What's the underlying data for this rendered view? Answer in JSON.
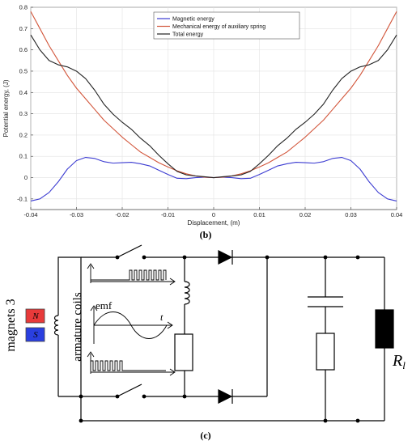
{
  "chart_data": {
    "type": "line",
    "title": "",
    "xlabel": "Displacement, (m)",
    "ylabel": "Potential energy, (J)",
    "xlim": [
      -0.04,
      0.04
    ],
    "ylim": [
      -0.15,
      0.8
    ],
    "xticks": [
      -0.04,
      -0.03,
      -0.02,
      -0.01,
      0,
      0.01,
      0.02,
      0.03,
      0.04
    ],
    "xtick_labels": [
      "-0.04",
      "-0.03",
      "-0.02",
      "-0.01",
      "0",
      "0.01",
      "0.02",
      "0.03",
      "0.04"
    ],
    "yticks": [
      -0.1,
      0,
      0.1,
      0.2,
      0.3,
      0.4,
      0.5,
      0.6,
      0.7,
      0.8
    ],
    "ytick_labels": [
      "-0.1",
      "0",
      "0.1",
      "0.2",
      "0.3",
      "0.4",
      "0.5",
      "0.6",
      "0.7",
      "0.8"
    ],
    "grid": true,
    "legend_position": "top-center",
    "x": [
      -0.04,
      -0.038,
      -0.036,
      -0.034,
      -0.032,
      -0.03,
      -0.028,
      -0.026,
      -0.024,
      -0.022,
      -0.02,
      -0.018,
      -0.016,
      -0.014,
      -0.012,
      -0.01,
      -0.008,
      -0.006,
      -0.004,
      -0.002,
      0,
      0.002,
      0.004,
      0.006,
      0.008,
      0.01,
      0.012,
      0.014,
      0.016,
      0.018,
      0.02,
      0.022,
      0.024,
      0.026,
      0.028,
      0.03,
      0.032,
      0.034,
      0.036,
      0.038,
      0.04
    ],
    "series": [
      {
        "name": "Magnetic energy",
        "color": "#3b3bd1",
        "values": [
          -0.11,
          -0.1,
          -0.07,
          -0.02,
          0.04,
          0.08,
          0.095,
          0.09,
          0.075,
          0.068,
          0.07,
          0.072,
          0.065,
          0.055,
          0.035,
          0.015,
          -0.003,
          -0.005,
          0.0,
          0.002,
          0.0,
          0.002,
          0.0,
          -0.005,
          -0.003,
          0.015,
          0.035,
          0.055,
          0.065,
          0.072,
          0.07,
          0.068,
          0.075,
          0.09,
          0.095,
          0.08,
          0.04,
          -0.02,
          -0.07,
          -0.1,
          -0.11
        ]
      },
      {
        "name": "Mechanical energy of auxiliary spring",
        "color": "#d2553a",
        "values": [
          0.78,
          0.7,
          0.62,
          0.55,
          0.48,
          0.42,
          0.37,
          0.32,
          0.27,
          0.23,
          0.19,
          0.155,
          0.12,
          0.095,
          0.07,
          0.05,
          0.032,
          0.018,
          0.008,
          0.002,
          0.0,
          0.002,
          0.008,
          0.018,
          0.032,
          0.05,
          0.07,
          0.095,
          0.12,
          0.155,
          0.19,
          0.23,
          0.27,
          0.32,
          0.37,
          0.42,
          0.48,
          0.55,
          0.62,
          0.7,
          0.78
        ]
      },
      {
        "name": "Total energy",
        "color": "#222222",
        "values": [
          0.67,
          0.6,
          0.55,
          0.53,
          0.52,
          0.5,
          0.465,
          0.41,
          0.345,
          0.298,
          0.26,
          0.227,
          0.185,
          0.15,
          0.105,
          0.065,
          0.029,
          0.013,
          0.008,
          0.004,
          0.0,
          0.004,
          0.008,
          0.013,
          0.029,
          0.065,
          0.105,
          0.15,
          0.185,
          0.227,
          0.26,
          0.298,
          0.345,
          0.41,
          0.465,
          0.5,
          0.52,
          0.53,
          0.55,
          0.6,
          0.67
        ]
      }
    ]
  },
  "captions": {
    "b": "(b)",
    "c": "(c)"
  },
  "circuit": {
    "magnets_label": "magnets 3",
    "coils_label": "armature coils",
    "emf_label": "emf",
    "time_label": "t",
    "magnet_n": "N",
    "magnet_s": "S",
    "load_label": "R",
    "load_subscript": "l",
    "magnet_n_color": "#e83a3a",
    "magnet_s_color": "#2a3fe0"
  }
}
